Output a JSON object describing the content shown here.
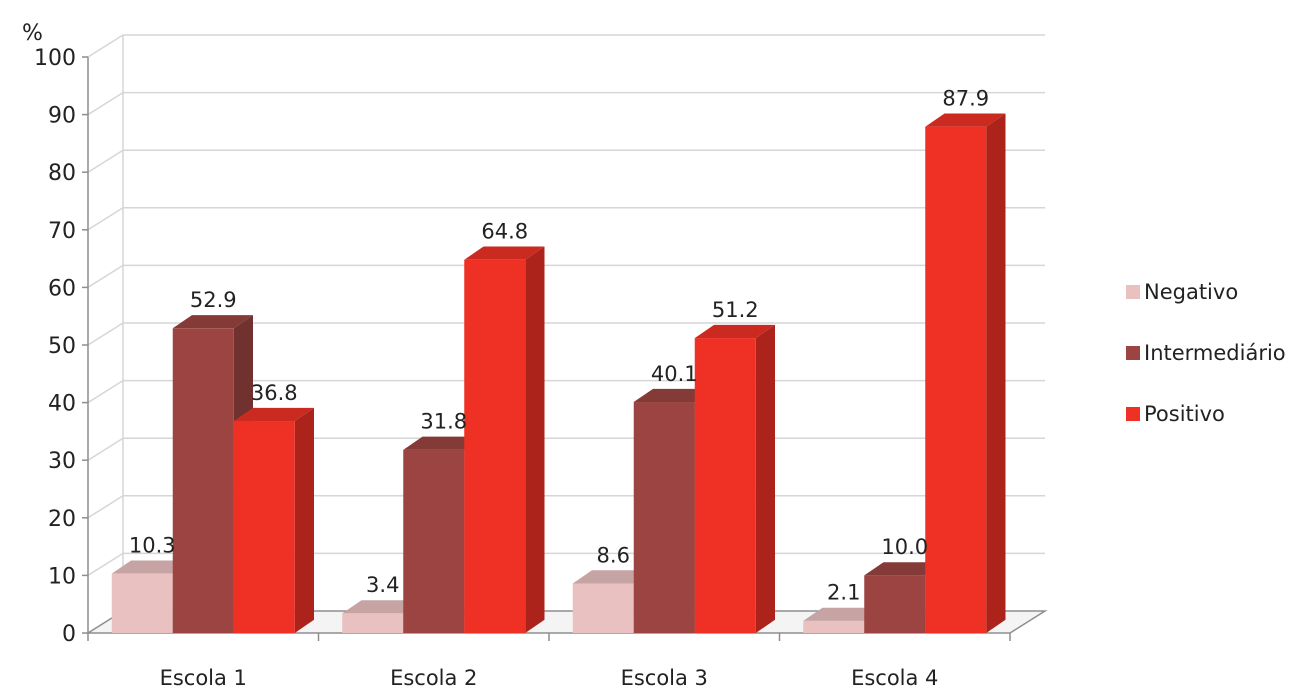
{
  "chart_data": {
    "type": "bar",
    "ylabel": "%",
    "xlabel": "",
    "ylim": [
      0,
      100
    ],
    "yticks": [
      0,
      10,
      20,
      30,
      40,
      50,
      60,
      70,
      80,
      90,
      100
    ],
    "categories": [
      "Escola 1",
      "Escola 2",
      "Escola 3",
      "Escola 4"
    ],
    "series": [
      {
        "name": "Negativo",
        "color": "#e9c1c1",
        "values": [
          10.3,
          3.4,
          8.6,
          2.1
        ],
        "labels": [
          "10.3",
          "3.4",
          "8.6",
          "2.1"
        ]
      },
      {
        "name": "Intermediário",
        "color": "#9b4441",
        "values": [
          52.9,
          31.8,
          40.1,
          10.0
        ],
        "labels": [
          "52.9",
          "31.8",
          "40.1",
          "10.0"
        ]
      },
      {
        "name": "Positivo",
        "color": "#ee3124",
        "values": [
          36.8,
          64.8,
          51.2,
          87.9
        ],
        "labels": [
          "36.8",
          "64.8",
          "51.2",
          "87.9"
        ]
      }
    ],
    "grid": true,
    "legend_position": "right",
    "style": "3d-clustered-bar"
  }
}
